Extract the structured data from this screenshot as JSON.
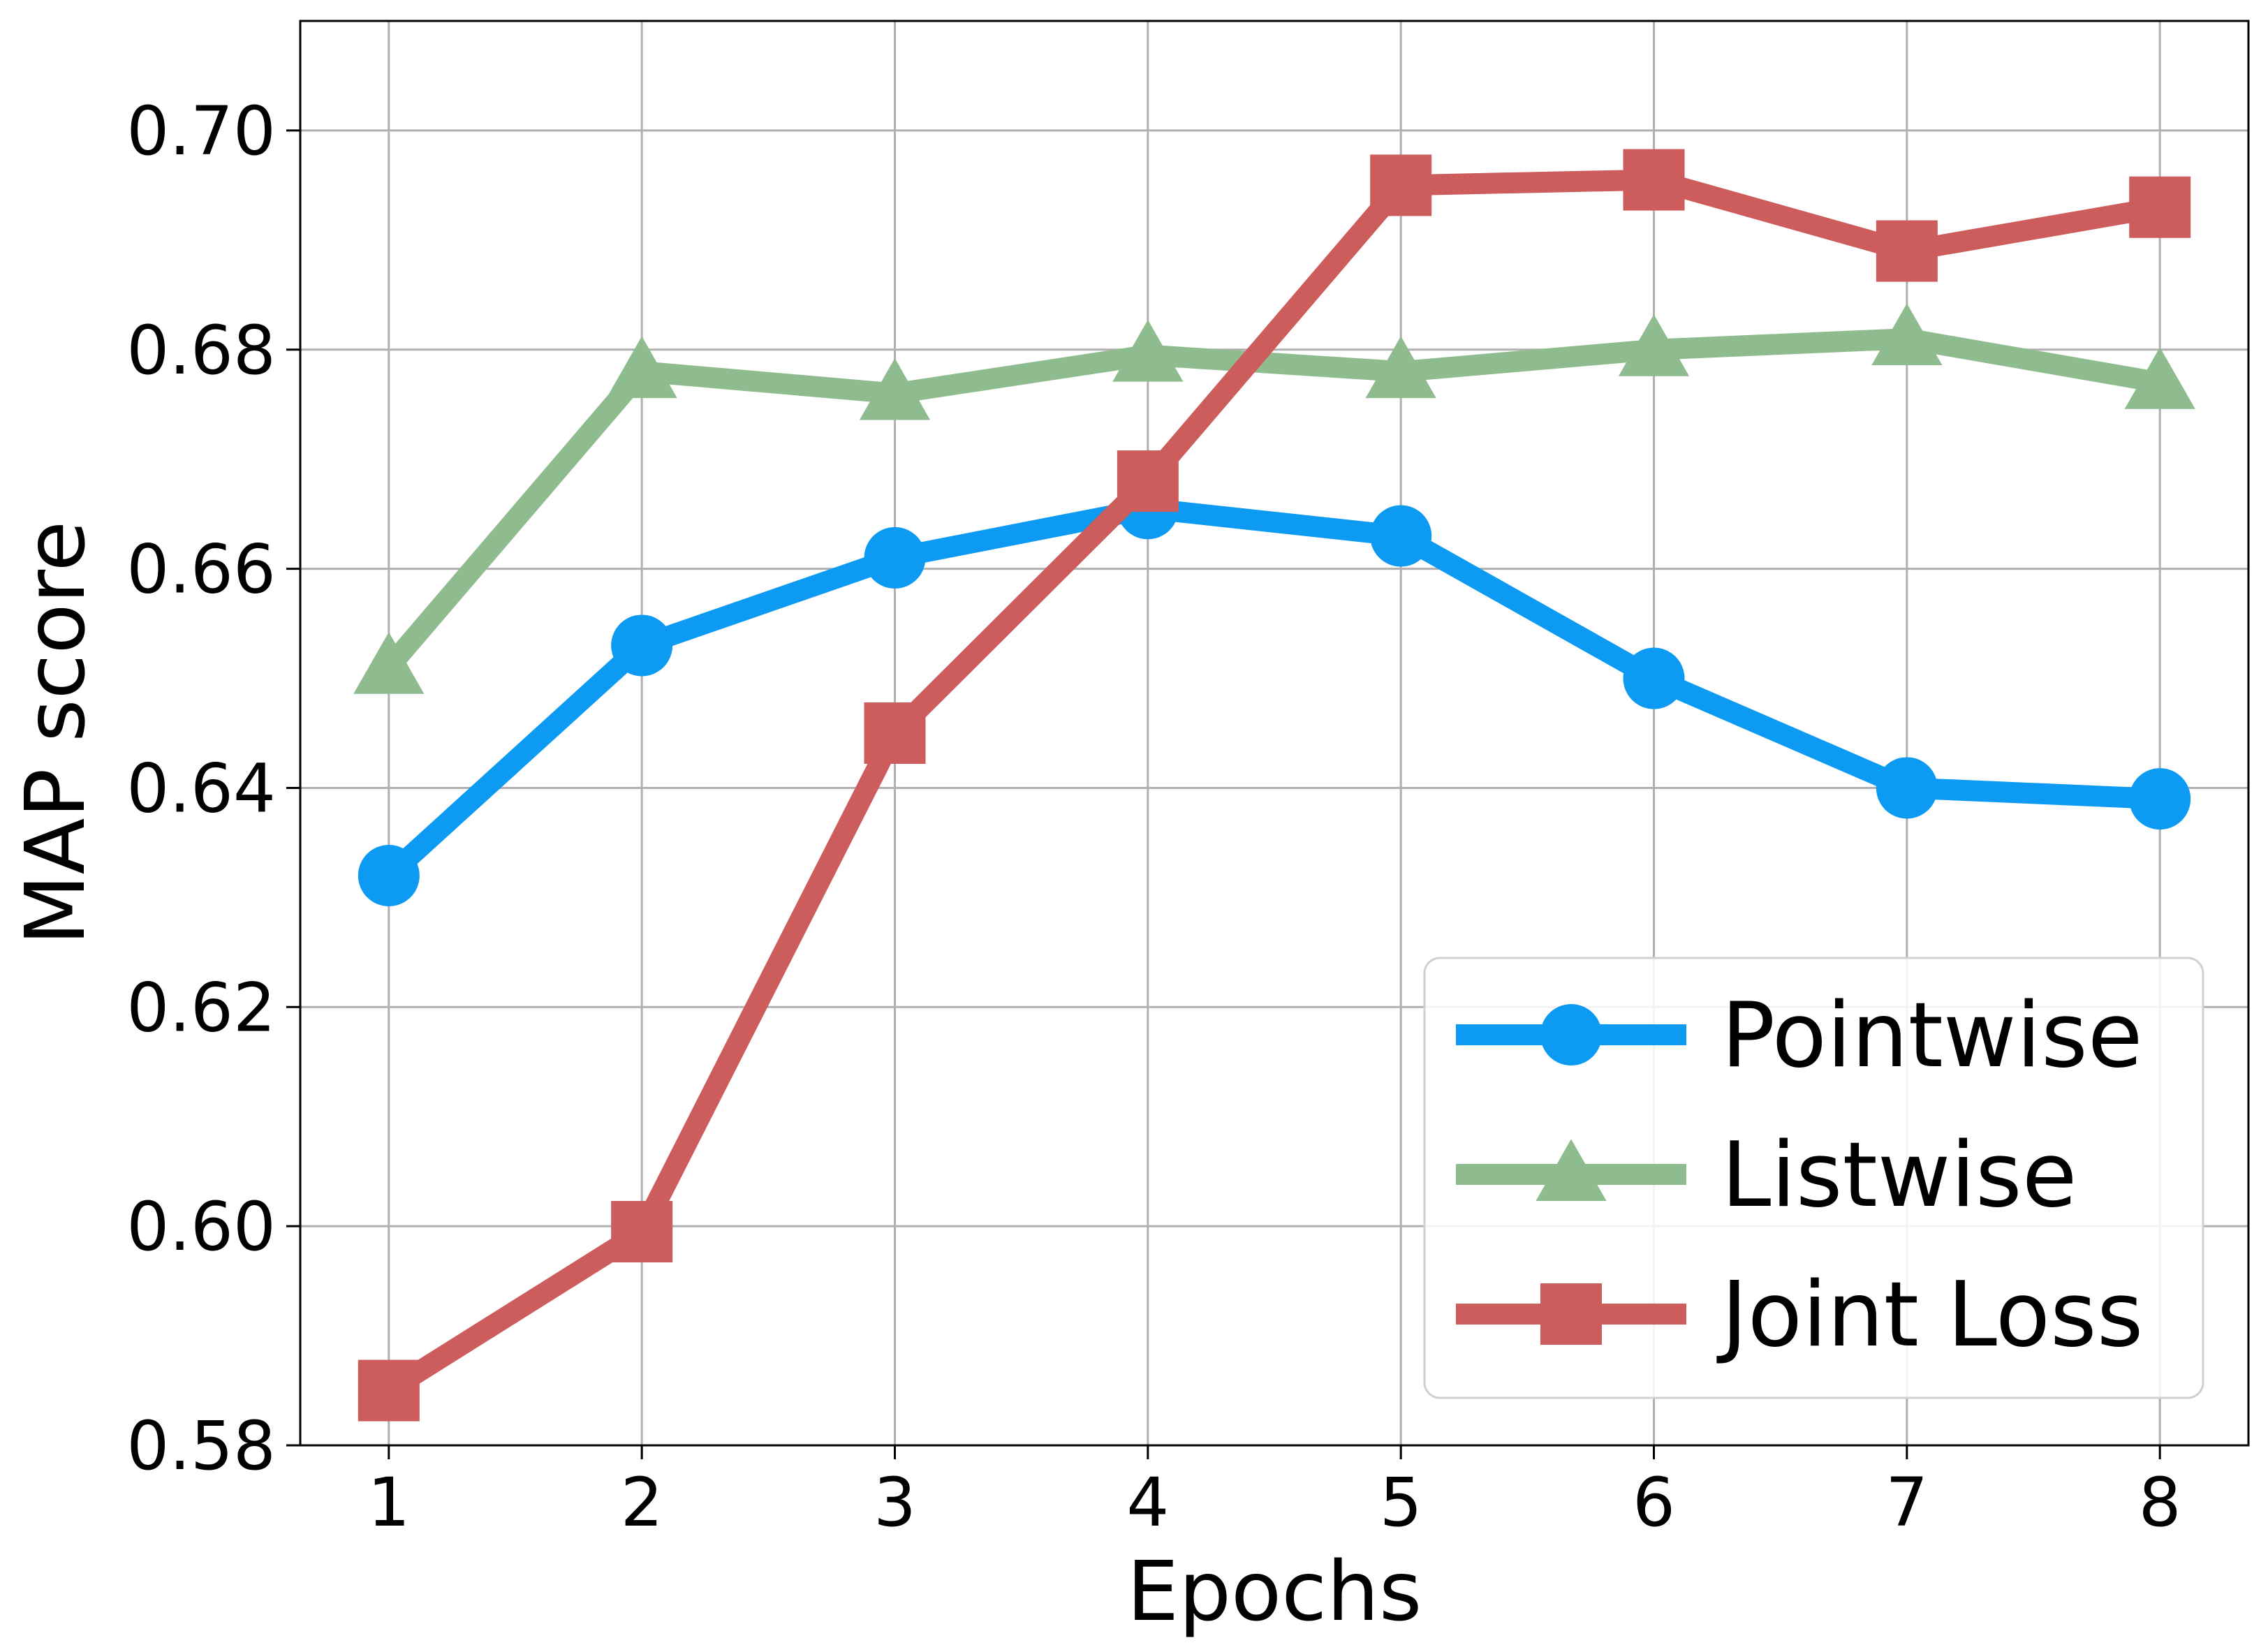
{
  "chart_data": {
    "type": "line",
    "title": "",
    "xlabel": "Epochs",
    "ylabel": "MAP score",
    "x": [
      1,
      2,
      3,
      4,
      5,
      6,
      7,
      8
    ],
    "xticks": [
      "1",
      "2",
      "3",
      "4",
      "5",
      "6",
      "7",
      "8"
    ],
    "yticks": [
      "0.58",
      "0.60",
      "0.62",
      "0.64",
      "0.66",
      "0.68",
      "0.70"
    ],
    "xlim": [
      0.65,
      8.35
    ],
    "ylim": [
      0.58,
      0.71
    ],
    "grid": true,
    "legend_position": "lower-right",
    "series": [
      {
        "name": "Pointwise",
        "color": "#0c9af3",
        "marker": "circle",
        "values": [
          0.632,
          0.653,
          0.661,
          0.6655,
          0.663,
          0.65,
          0.64,
          0.639
        ]
      },
      {
        "name": "Listwise",
        "color": "#8fbc8f",
        "marker": "triangle",
        "values": [
          0.651,
          0.678,
          0.676,
          0.6795,
          0.678,
          0.68,
          0.681,
          0.677
        ]
      },
      {
        "name": "Joint Loss",
        "color": "#cd5c5c",
        "marker": "square",
        "values": [
          0.585,
          0.5995,
          0.645,
          0.668,
          0.695,
          0.6955,
          0.689,
          0.693
        ]
      }
    ]
  }
}
